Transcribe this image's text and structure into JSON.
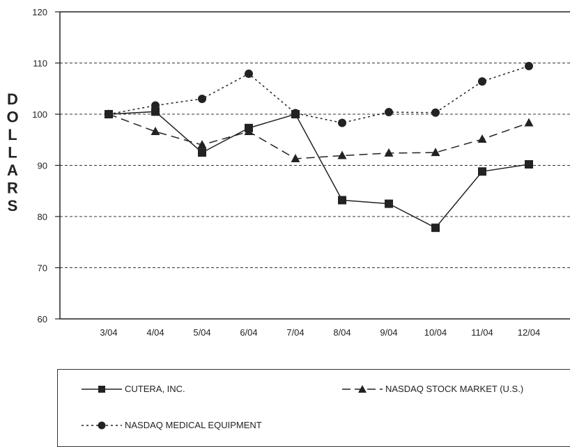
{
  "chart_data": {
    "type": "line",
    "categories": [
      "3/04",
      "4/04",
      "5/04",
      "6/04",
      "7/04",
      "8/04",
      "9/04",
      "10/04",
      "11/04",
      "12/04"
    ],
    "ylabel": "DOLLARS",
    "ylim": [
      60,
      120
    ],
    "yticks": [
      60,
      70,
      80,
      90,
      100,
      110,
      120
    ],
    "grid": "dashed horizontal at 70, 80, 90, 100, 110",
    "legend_position": "bottom",
    "series": [
      {
        "name": "CUTERA, INC.",
        "values": [
          100,
          100.5,
          92.5,
          97.3,
          100,
          83.2,
          82.5,
          77.8,
          88.8,
          90.2
        ],
        "line": "solid",
        "marker": "square"
      },
      {
        "name": "NASDAQ STOCK MARKET (U.S.)",
        "values": [
          100,
          96.6,
          94.0,
          96.6,
          91.3,
          91.9,
          92.4,
          92.5,
          95.1,
          98.3
        ],
        "line": "long-dash",
        "marker": "triangle"
      },
      {
        "name": "NASDAQ MEDICAL EQUIPMENT",
        "values": [
          100,
          101.7,
          103.0,
          107.9,
          100.2,
          98.3,
          100.4,
          100.3,
          106.4,
          109.4
        ],
        "line": "dotted",
        "marker": "circle"
      }
    ]
  },
  "legend": {
    "items": [
      "CUTERA, INC.",
      "NASDAQ STOCK MARKET (U.S.)",
      "NASDAQ MEDICAL EQUIPMENT"
    ]
  },
  "colors": {
    "line": "#222222",
    "grid": "#333333"
  }
}
